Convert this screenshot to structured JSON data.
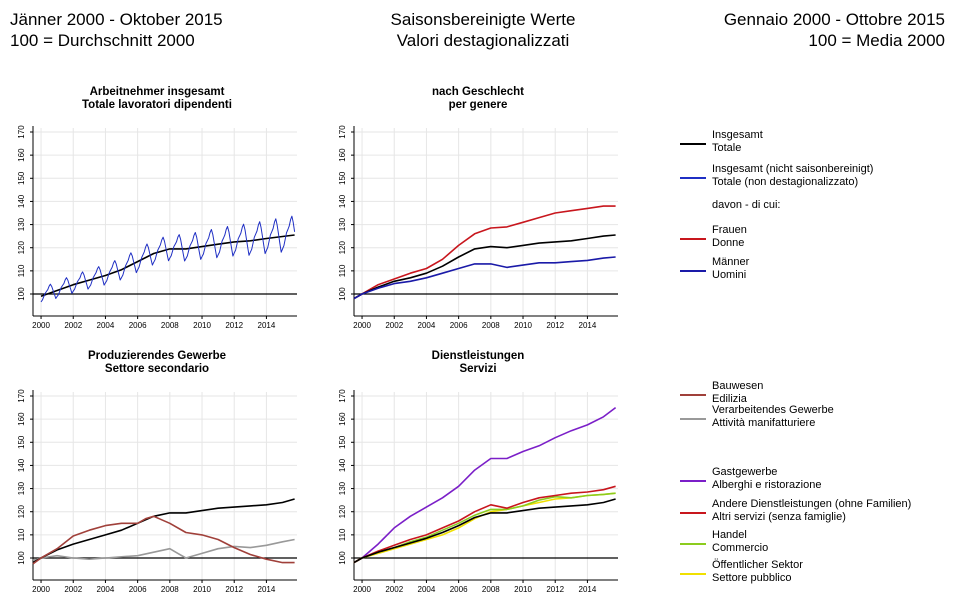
{
  "header": {
    "left": [
      "Jänner 2000 - Oktober 2015",
      "100 = Durchschnitt 2000"
    ],
    "center": [
      "Saisonsbereinigte Werte",
      "Valori destagionalizzati"
    ],
    "right": [
      "Gennaio 2000 - Ottobre 2015",
      "100 = Media 2000"
    ]
  },
  "colors": {
    "black": "#000000",
    "blue_raw": "#1f2fc4",
    "red": "#c8161d",
    "navy": "#1a1aa8",
    "brown": "#a0403a",
    "gray": "#999999",
    "purple": "#7b1fc8",
    "green": "#8ccc1e",
    "yellow": "#f0e000"
  },
  "legend": {
    "top": [
      {
        "lines": [
          "Insgesamt",
          "Totale"
        ],
        "color": "#000000"
      },
      {
        "lines": [
          "Insgesamt (nicht saisonbereinigt)",
          "Totale (non destagionalizzato)"
        ],
        "color": "#1f2fc4"
      },
      {
        "lines": [
          "davon - di cui:"
        ],
        "color": null
      },
      {
        "lines": [
          "Frauen",
          "Donne"
        ],
        "color": "#c8161d"
      },
      {
        "lines": [
          "Männer",
          "Uomini"
        ],
        "color": "#1a1aa8"
      }
    ],
    "bottom": [
      {
        "lines": [
          "Bauwesen",
          "Edilizia"
        ],
        "color": "#a0403a"
      },
      {
        "lines": [
          "Verarbeitendes Gewerbe",
          "Attività manifatturiere"
        ],
        "color": "#999999"
      },
      {
        "lines": [
          "Gastgewerbe",
          "Alberghi e ristorazione"
        ],
        "color": "#7b1fc8"
      },
      {
        "lines": [
          "Andere Dienstleistungen (ohne Familien)",
          "Altri servizi (senza famiglie)"
        ],
        "color": "#c8161d"
      },
      {
        "lines": [
          "Handel",
          "Commercio"
        ],
        "color": "#8ccc1e"
      },
      {
        "lines": [
          "Öffentlicher Sektor",
          "Settore pubblico"
        ],
        "color": "#f0e000"
      }
    ]
  },
  "chart_data": [
    {
      "type": "line",
      "title": [
        "Arbeitnehmer insgesamt",
        "Totale lavoratori dipendenti"
      ],
      "x_ticks": [
        "2000",
        "2002",
        "2004",
        "2006",
        "2008",
        "2010",
        "2012",
        "2014"
      ],
      "y_ticks": [
        "100",
        "110",
        "120",
        "130",
        "140",
        "150",
        "160",
        "170"
      ],
      "ylim": [
        90,
        170
      ],
      "xlim": [
        1999.5,
        2015.9
      ],
      "series": [
        {
          "color": "#000000",
          "x": [
            2000,
            2001,
            2002,
            2003,
            2004,
            2005,
            2006,
            2007,
            2008,
            2009,
            2010,
            2011,
            2012,
            2013,
            2014,
            2015.75
          ],
          "y": [
            99,
            101.5,
            104,
            106,
            108,
            110.5,
            114,
            117.5,
            119.5,
            119.5,
            120.5,
            121.5,
            122.5,
            123,
            124,
            125.5
          ]
        },
        {
          "color": "#1f2fc4",
          "seasonal": true,
          "amp": 6,
          "x": [
            2000,
            2001,
            2002,
            2003,
            2004,
            2005,
            2006,
            2007,
            2008,
            2009,
            2010,
            2011,
            2012,
            2013,
            2014,
            2015.75
          ],
          "y": [
            99,
            101.5,
            104,
            106,
            108,
            110.5,
            114,
            117.5,
            119.5,
            119.5,
            120.5,
            121.5,
            122.5,
            123,
            124,
            125.5
          ]
        }
      ]
    },
    {
      "type": "line",
      "title": [
        "nach Geschlecht",
        "per genere"
      ],
      "x_ticks": [
        "2000",
        "2002",
        "2004",
        "2006",
        "2008",
        "2010",
        "2012",
        "2014"
      ],
      "y_ticks": [
        "100",
        "110",
        "120",
        "130",
        "140",
        "150",
        "160",
        "170"
      ],
      "ylim": [
        90,
        170
      ],
      "xlim": [
        1999.5,
        2015.9
      ],
      "series": [
        {
          "color": "#c8161d",
          "x": [
            1999.5,
            2000,
            2001,
            2002,
            2003,
            2004,
            2005,
            2006,
            2007,
            2008,
            2009,
            2010,
            2011,
            2012,
            2013,
            2014,
            2015,
            2015.75
          ],
          "y": [
            98,
            100,
            104,
            106.5,
            109,
            111,
            115,
            121,
            126,
            128.5,
            129,
            131,
            133,
            135,
            136,
            137,
            138,
            138
          ]
        },
        {
          "color": "#000000",
          "x": [
            1999.5,
            2000,
            2001,
            2002,
            2003,
            2004,
            2005,
            2006,
            2007,
            2008,
            2009,
            2010,
            2011,
            2012,
            2013,
            2014,
            2015,
            2015.75
          ],
          "y": [
            98,
            100,
            103,
            105.5,
            107,
            109,
            112,
            116,
            119.5,
            120.5,
            120,
            121,
            122,
            122.5,
            123,
            124,
            125,
            125.5
          ]
        },
        {
          "color": "#1a1aa8",
          "x": [
            1999.5,
            2000,
            2001,
            2002,
            2003,
            2004,
            2005,
            2006,
            2007,
            2008,
            2009,
            2010,
            2011,
            2012,
            2013,
            2014,
            2015,
            2015.75
          ],
          "y": [
            98,
            100,
            102.5,
            104.5,
            105.5,
            107,
            109,
            111,
            113,
            113,
            111.5,
            112.5,
            113.5,
            113.5,
            114,
            114.5,
            115.5,
            116
          ]
        }
      ]
    },
    {
      "type": "line",
      "title": [
        "Produzierendes Gewerbe",
        "Settore secondario"
      ],
      "x_ticks": [
        "2000",
        "2002",
        "2004",
        "2006",
        "2008",
        "2010",
        "2012",
        "2014"
      ],
      "y_ticks": [
        "100",
        "110",
        "120",
        "130",
        "140",
        "150",
        "160",
        "170"
      ],
      "ylim": [
        90,
        170
      ],
      "xlim": [
        1999.5,
        2015.9
      ],
      "series": [
        {
          "color": "#999999",
          "x": [
            1999.5,
            2000,
            2001,
            2002,
            2003,
            2004,
            2005,
            2006,
            2007,
            2008,
            2008.5,
            2009,
            2010,
            2011,
            2012,
            2013,
            2014,
            2015,
            2015.75
          ],
          "y": [
            99,
            100,
            101,
            100,
            99.5,
            100,
            100.5,
            101,
            102.5,
            104,
            102,
            100,
            102,
            104,
            105,
            104.5,
            105.5,
            107,
            108
          ]
        },
        {
          "color": "#000000",
          "x": [
            1999.5,
            2000,
            2001,
            2002,
            2003,
            2004,
            2005,
            2006,
            2007,
            2008,
            2009,
            2010,
            2011,
            2012,
            2013,
            2014,
            2015,
            2015.75
          ],
          "y": [
            98,
            100,
            103.5,
            106,
            108,
            110,
            112,
            115,
            118,
            119.5,
            119.5,
            120.5,
            121.5,
            122,
            122.5,
            123,
            124,
            125.5
          ]
        },
        {
          "color": "#a0403a",
          "x": [
            1999.5,
            2000,
            2001,
            2002,
            2003,
            2004,
            2005,
            2006,
            2006.5,
            2007,
            2008,
            2009,
            2010,
            2011,
            2012,
            2013,
            2014,
            2015,
            2015.75
          ],
          "y": [
            97.5,
            100,
            104,
            109.5,
            112,
            114,
            115,
            115,
            117,
            118,
            115,
            111,
            110,
            108,
            104.5,
            101.5,
            99.5,
            98,
            98
          ]
        }
      ]
    },
    {
      "type": "line",
      "title": [
        "Dienstleistungen",
        "Servizi"
      ],
      "x_ticks": [
        "2000",
        "2002",
        "2004",
        "2006",
        "2008",
        "2010",
        "2012",
        "2014"
      ],
      "y_ticks": [
        "100",
        "110",
        "120",
        "130",
        "140",
        "150",
        "160",
        "170"
      ],
      "ylim": [
        90,
        170
      ],
      "xlim": [
        1999.5,
        2015.9
      ],
      "series": [
        {
          "color": "#7b1fc8",
          "x": [
            1999.5,
            2000,
            2001,
            2002,
            2003,
            2004,
            2005,
            2006,
            2007,
            2008,
            2009,
            2010,
            2011,
            2012,
            2013,
            2014,
            2015,
            2015.75
          ],
          "y": [
            98,
            100,
            106,
            113,
            118,
            122,
            126,
            131,
            138,
            143,
            143,
            146,
            148.5,
            152,
            155,
            157.5,
            161,
            165
          ]
        },
        {
          "color": "#f0e000",
          "x": [
            1999.5,
            2000,
            2001,
            2002,
            2003,
            2004,
            2005,
            2006,
            2007,
            2008,
            2009,
            2010,
            2011,
            2012,
            2013,
            2014,
            2015,
            2015.75
          ],
          "y": [
            98,
            100,
            102,
            104,
            106,
            108,
            110,
            113,
            117,
            120,
            121,
            122.5,
            124,
            125.5,
            126,
            127,
            127.5,
            128
          ]
        },
        {
          "color": "#8ccc1e",
          "x": [
            1999.5,
            2000,
            2001,
            2002,
            2003,
            2004,
            2005,
            2006,
            2007,
            2008,
            2009,
            2010,
            2011,
            2012,
            2013,
            2014,
            2015,
            2015.75
          ],
          "y": [
            98,
            100,
            102.5,
            104.5,
            107,
            109,
            112,
            115,
            118.5,
            121,
            121,
            122.5,
            125,
            126.5,
            126,
            127,
            127.5,
            128
          ]
        },
        {
          "color": "#c8161d",
          "x": [
            1999.5,
            2000,
            2001,
            2002,
            2003,
            2004,
            2005,
            2006,
            2007,
            2008,
            2009,
            2010,
            2011,
            2012,
            2013,
            2014,
            2015,
            2015.75
          ],
          "y": [
            98,
            100,
            103,
            105.5,
            108,
            110,
            113,
            116,
            120,
            123,
            121.5,
            124,
            126,
            127,
            128,
            128.5,
            129.5,
            131
          ]
        },
        {
          "color": "#000000",
          "x": [
            1999.5,
            2000,
            2001,
            2002,
            2003,
            2004,
            2005,
            2006,
            2007,
            2008,
            2009,
            2010,
            2011,
            2012,
            2013,
            2014,
            2015,
            2015.75
          ],
          "y": [
            98,
            100,
            102.5,
            104.5,
            106.5,
            108.5,
            111,
            114,
            117.5,
            119.5,
            119.5,
            120.5,
            121.5,
            122,
            122.5,
            123,
            124,
            125.5
          ]
        }
      ]
    }
  ]
}
